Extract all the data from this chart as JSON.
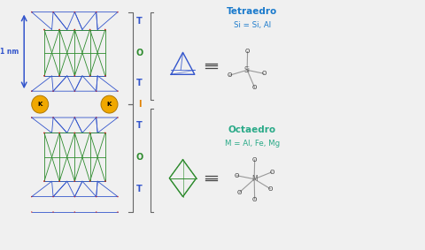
{
  "bg_color": "#f0f0f0",
  "title_tetraedro": "Tetraedro",
  "subtitle_tetraedro": "Si = Si, Al",
  "title_octaedro": "Octaedro",
  "subtitle_octaedro": "M = Al, Fe, Mg",
  "label_1nm": "1 nm",
  "blue_color": "#3355cc",
  "green_color": "#2e8b2e",
  "orange_color": "#e08000",
  "red_color": "#cc2222",
  "teal_title_color": "#1a7acc",
  "teal_sub_color": "#2aaa88",
  "k_color": "#f0a800",
  "gray_color": "#666666"
}
